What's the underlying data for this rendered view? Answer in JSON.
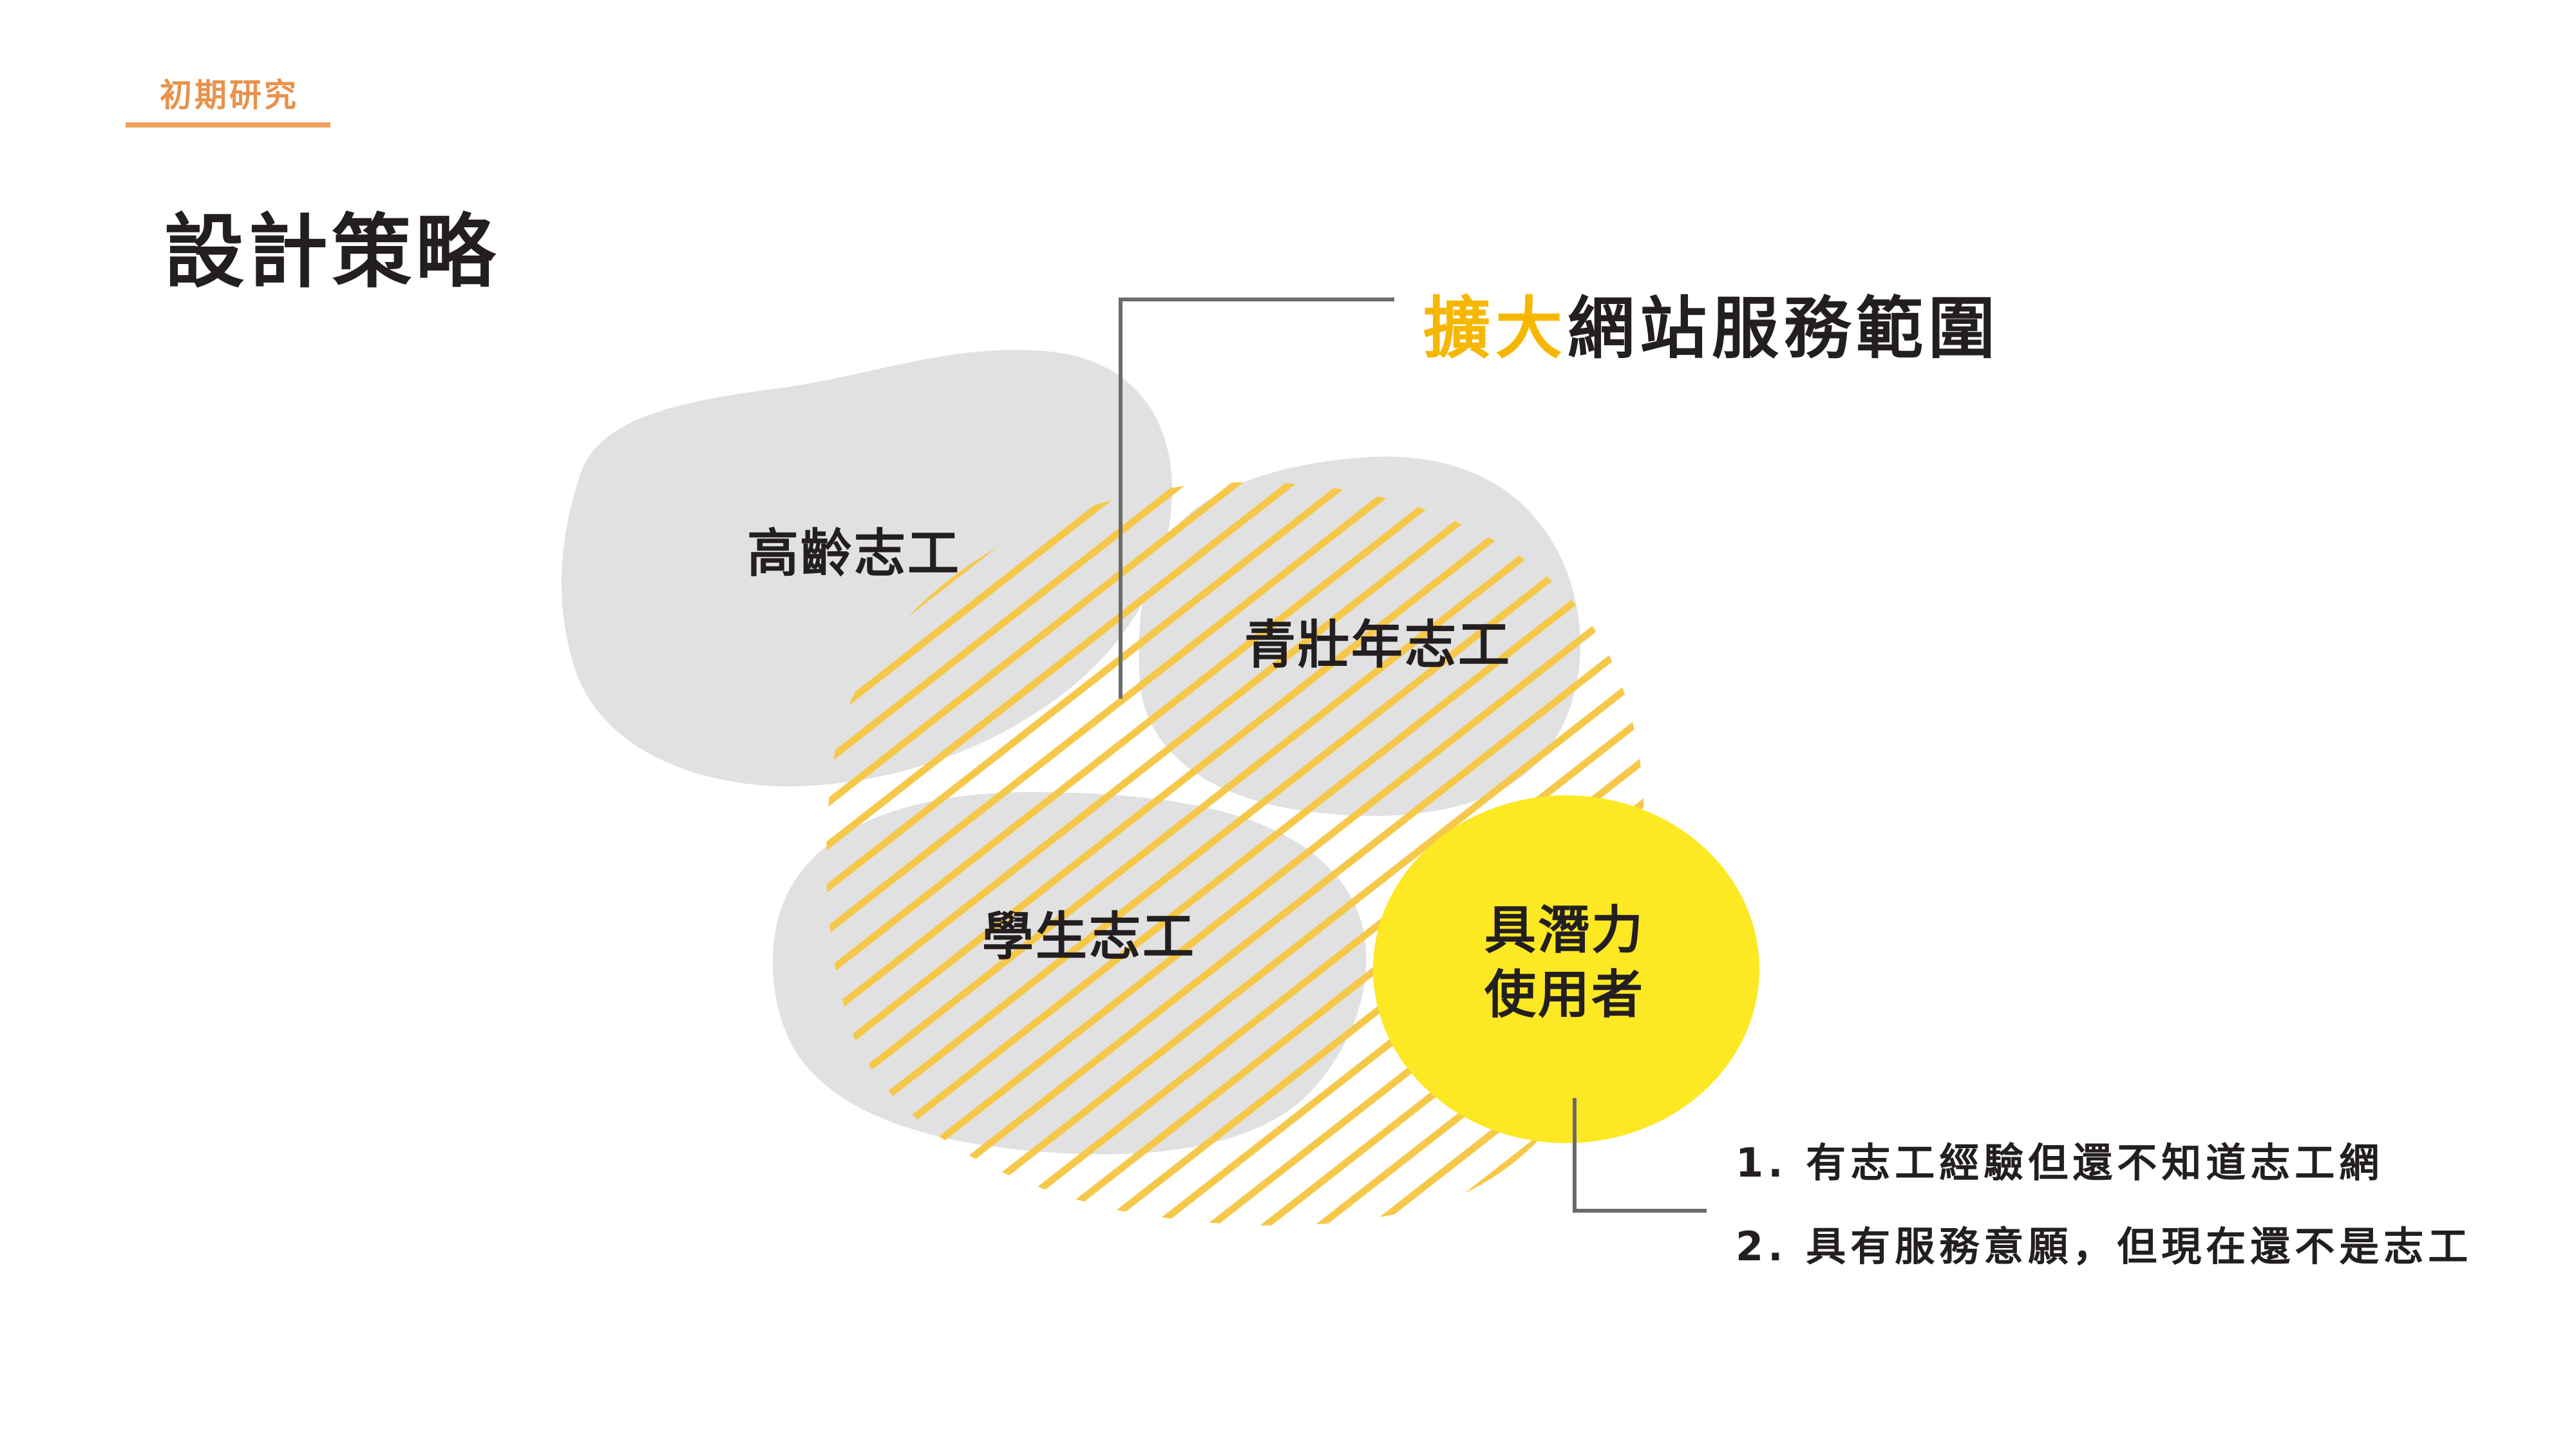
{
  "header": {
    "section_tag": "初期研究",
    "title": "設計策略"
  },
  "headline": {
    "accent": "擴大",
    "rest": "網站服務範圍"
  },
  "groups": {
    "senior": "高齡志工",
    "young_adult": "青壯年志工",
    "student": "學生志工",
    "potential_line1": "具潛力",
    "potential_line2": "使用者"
  },
  "notes": [
    "1. 有志工經驗但還不知道志工網",
    "2. 具有服務意願，但現在還不是志工"
  ],
  "colors": {
    "tag_orange": "#e8924c",
    "blob_gray": "#e2e1e1",
    "stripe_yellow": "#f6c84a",
    "potential_yellow": "#fde824",
    "accent_yellow": "#f6b700",
    "text_dark": "#231f20",
    "connector_gray": "#6b6b6b"
  }
}
